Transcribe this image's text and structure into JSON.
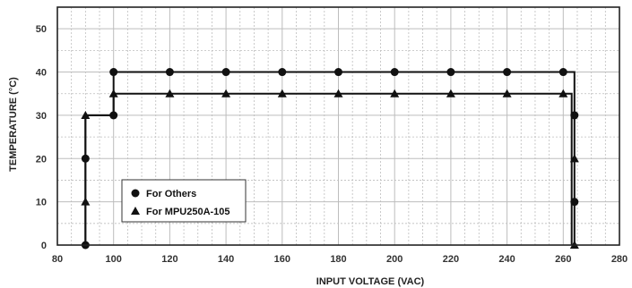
{
  "chart_data": {
    "type": "line",
    "xlabel": "INPUT VOLTAGE (VAC)",
    "ylabel": "TEMPERATURE (°C)",
    "xlim": [
      80,
      280
    ],
    "ylim": [
      0,
      55
    ],
    "x_ticks": [
      "80",
      "100",
      "120",
      "140",
      "160",
      "180",
      "200",
      "220",
      "240",
      "260",
      "280"
    ],
    "y_ticks": [
      "0",
      "10",
      "20",
      "30",
      "40",
      "50"
    ],
    "grid": true,
    "legend_position": "bottom-left",
    "series": [
      {
        "name": "For Others",
        "marker": "circle",
        "line": {
          "x": [
            90,
            90,
            100,
            100,
            260,
            264,
            264
          ],
          "y": [
            0,
            30,
            30,
            40,
            40,
            40,
            0
          ]
        },
        "markers": {
          "x": [
            90,
            90,
            100,
            100,
            120,
            140,
            160,
            180,
            200,
            220,
            240,
            260,
            264,
            264
          ],
          "y": [
            0,
            20,
            30,
            40,
            40,
            40,
            40,
            40,
            40,
            40,
            40,
            40,
            30,
            10
          ]
        }
      },
      {
        "name": "For MPU250A-105",
        "marker": "triangle",
        "line": {
          "x": [
            90,
            90,
            100,
            100,
            263,
            263
          ],
          "y": [
            0,
            30,
            30,
            35,
            35,
            0
          ]
        },
        "markers": {
          "x": [
            90,
            90,
            100,
            120,
            140,
            160,
            180,
            200,
            220,
            240,
            260,
            264,
            264
          ],
          "y": [
            10,
            30,
            35,
            35,
            35,
            35,
            35,
            35,
            35,
            35,
            35,
            20,
            0
          ]
        }
      }
    ],
    "colors": {
      "line": "#111111",
      "grid": "#bdbdbd",
      "frame": "#222222"
    }
  }
}
